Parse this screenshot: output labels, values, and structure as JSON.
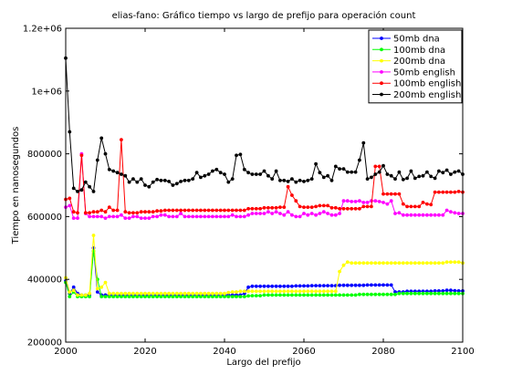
{
  "chart_data": {
    "type": "line",
    "title": "elias-fano: Gráfico tiempo vs largo de prefijo para operación count",
    "xlabel": "Largo del prefijo",
    "ylabel": "Tiempo en nanosegundos",
    "xlim": [
      2000,
      2100
    ],
    "ylim": [
      200000,
      1200000
    ],
    "xticks": [
      2000,
      2020,
      2040,
      2060,
      2080,
      2100
    ],
    "xtick_labels": [
      "2000",
      "2020",
      "2040",
      "2060",
      "2080",
      "2100"
    ],
    "yticks": [
      200000,
      400000,
      600000,
      800000,
      1000000,
      1200000
    ],
    "ytick_labels": [
      "200000",
      "400000",
      "600000",
      "800000",
      "1e+06",
      "1.2e+06"
    ],
    "grid": false,
    "legend_position": "top-right",
    "x_start": 2000,
    "x_step": 1,
    "series": [
      {
        "name": "50mb dna",
        "color": "#0000ff",
        "values": [
          395000,
          355000,
          375000,
          355000,
          350000,
          350000,
          350000,
          500000,
          360000,
          350000,
          350000,
          350000,
          350000,
          350000,
          350000,
          350000,
          350000,
          350000,
          350000,
          350000,
          350000,
          350000,
          350000,
          350000,
          350000,
          350000,
          350000,
          350000,
          350000,
          350000,
          350000,
          350000,
          350000,
          350000,
          350000,
          350000,
          350000,
          350000,
          350000,
          350000,
          350000,
          350000,
          350000,
          350000,
          350000,
          355000,
          375000,
          378000,
          378000,
          378000,
          378000,
          378000,
          378000,
          378000,
          378000,
          378000,
          378000,
          378000,
          379000,
          379000,
          379000,
          379000,
          380000,
          380000,
          380000,
          380000,
          380000,
          380000,
          380000,
          381000,
          381000,
          381000,
          381000,
          381000,
          381000,
          381000,
          382000,
          382000,
          382000,
          382000,
          382000,
          382000,
          382000,
          360000,
          360000,
          360000,
          362000,
          362000,
          362000,
          362000,
          362000,
          362000,
          362000,
          363000,
          363000,
          363000,
          365000,
          365000,
          364000,
          363000,
          363000
        ]
      },
      {
        "name": "100mb dna",
        "color": "#00ff00",
        "values": [
          390000,
          345000,
          360000,
          345000,
          345000,
          345000,
          345000,
          490000,
          400000,
          345000,
          345000,
          345000,
          345000,
          345000,
          345000,
          345000,
          345000,
          345000,
          345000,
          345000,
          345000,
          345000,
          345000,
          345000,
          345000,
          345000,
          345000,
          345000,
          345000,
          345000,
          345000,
          345000,
          345000,
          345000,
          345000,
          345000,
          345000,
          345000,
          345000,
          345000,
          345000,
          345000,
          345000,
          345000,
          345000,
          345000,
          347000,
          348000,
          348000,
          348000,
          350000,
          350000,
          350000,
          350000,
          350000,
          350000,
          350000,
          350000,
          350000,
          350000,
          350000,
          350000,
          350000,
          350000,
          350000,
          350000,
          350000,
          350000,
          350000,
          350000,
          350000,
          350000,
          350000,
          350000,
          352000,
          352000,
          352000,
          352000,
          352000,
          352000,
          352000,
          352000,
          352000,
          352000,
          355000,
          355000,
          355000,
          355000,
          355000,
          355000,
          355000,
          355000,
          355000,
          355000,
          355000,
          355000,
          355000,
          355000,
          355000,
          355000,
          355000
        ]
      },
      {
        "name": "200mb dna",
        "color": "#ffff00",
        "values": [
          405000,
          360000,
          365000,
          350000,
          350000,
          350000,
          355000,
          540000,
          370000,
          375000,
          390000,
          355000,
          355000,
          355000,
          355000,
          355000,
          355000,
          355000,
          355000,
          355000,
          355000,
          355000,
          355000,
          355000,
          355000,
          355000,
          355000,
          355000,
          355000,
          355000,
          355000,
          355000,
          355000,
          355000,
          355000,
          355000,
          355000,
          355000,
          355000,
          355000,
          355000,
          358000,
          360000,
          360000,
          362000,
          362000,
          362000,
          362000,
          362000,
          362000,
          362000,
          362000,
          362000,
          362000,
          362000,
          362000,
          362000,
          362000,
          362000,
          362000,
          362000,
          362000,
          362000,
          362000,
          362000,
          362000,
          362000,
          362000,
          362000,
          425000,
          445000,
          455000,
          452000,
          452000,
          452000,
          452000,
          452000,
          452000,
          452000,
          452000,
          452000,
          452000,
          452000,
          452000,
          452000,
          452000,
          452000,
          452000,
          452000,
          452000,
          452000,
          452000,
          452000,
          452000,
          452000,
          452000,
          455000,
          455000,
          455000,
          455000,
          452000
        ]
      },
      {
        "name": "50mb english",
        "color": "#ff00ff",
        "values": [
          630000,
          635000,
          595000,
          595000,
          800000,
          610000,
          600000,
          600000,
          600000,
          600000,
          595000,
          600000,
          600000,
          600000,
          605000,
          595000,
          595000,
          600000,
          600000,
          595000,
          595000,
          595000,
          600000,
          600000,
          605000,
          605000,
          600000,
          600000,
          600000,
          610000,
          600000,
          600000,
          600000,
          600000,
          600000,
          600000,
          600000,
          600000,
          600000,
          600000,
          600000,
          600000,
          605000,
          600000,
          600000,
          600000,
          605000,
          610000,
          610000,
          610000,
          610000,
          615000,
          610000,
          615000,
          610000,
          605000,
          615000,
          605000,
          600000,
          600000,
          610000,
          605000,
          610000,
          605000,
          610000,
          615000,
          610000,
          605000,
          605000,
          610000,
          650000,
          650000,
          648000,
          648000,
          650000,
          645000,
          645000,
          650000,
          650000,
          648000,
          645000,
          640000,
          650000,
          610000,
          612000,
          605000,
          605000,
          605000,
          605000,
          605000,
          605000,
          605000,
          605000,
          605000,
          605000,
          605000,
          620000,
          615000,
          612000,
          610000,
          610000
        ]
      },
      {
        "name": "100mb english",
        "color": "#ff0000",
        "values": [
          655000,
          658000,
          615000,
          612000,
          795000,
          612000,
          612000,
          615000,
          615000,
          620000,
          615000,
          630000,
          620000,
          620000,
          845000,
          615000,
          612000,
          612000,
          612000,
          615000,
          615000,
          615000,
          615000,
          618000,
          618000,
          620000,
          620000,
          620000,
          620000,
          620000,
          620000,
          620000,
          620000,
          620000,
          620000,
          620000,
          620000,
          620000,
          620000,
          620000,
          620000,
          620000,
          620000,
          620000,
          620000,
          620000,
          625000,
          625000,
          625000,
          625000,
          628000,
          628000,
          628000,
          628000,
          630000,
          630000,
          695000,
          668000,
          650000,
          632000,
          630000,
          630000,
          630000,
          632000,
          635000,
          635000,
          635000,
          628000,
          628000,
          625000,
          625000,
          625000,
          625000,
          625000,
          625000,
          632000,
          632000,
          632000,
          760000,
          760000,
          672000,
          672000,
          672000,
          672000,
          672000,
          640000,
          632000,
          632000,
          632000,
          632000,
          645000,
          640000,
          638000,
          678000,
          678000,
          678000,
          678000,
          678000,
          678000,
          680000,
          678000
        ]
      },
      {
        "name": "200mb english",
        "color": "#000000",
        "values": [
          1105000,
          870000,
          690000,
          680000,
          685000,
          710000,
          695000,
          680000,
          780000,
          850000,
          800000,
          750000,
          745000,
          740000,
          735000,
          730000,
          710000,
          720000,
          710000,
          720000,
          700000,
          695000,
          710000,
          718000,
          715000,
          715000,
          712000,
          700000,
          705000,
          712000,
          715000,
          715000,
          720000,
          740000,
          725000,
          730000,
          735000,
          745000,
          750000,
          740000,
          735000,
          710000,
          720000,
          795000,
          798000,
          750000,
          740000,
          735000,
          735000,
          735000,
          745000,
          730000,
          720000,
          745000,
          715000,
          715000,
          712000,
          720000,
          710000,
          715000,
          712000,
          715000,
          720000,
          768000,
          740000,
          725000,
          730000,
          715000,
          760000,
          752000,
          752000,
          742000,
          742000,
          742000,
          780000,
          835000,
          720000,
          725000,
          735000,
          742000,
          762000,
          735000,
          730000,
          720000,
          742000,
          718000,
          722000,
          745000,
          722000,
          728000,
          730000,
          742000,
          728000,
          722000,
          745000,
          740000,
          748000,
          735000,
          742000,
          745000,
          735000
        ]
      }
    ]
  }
}
